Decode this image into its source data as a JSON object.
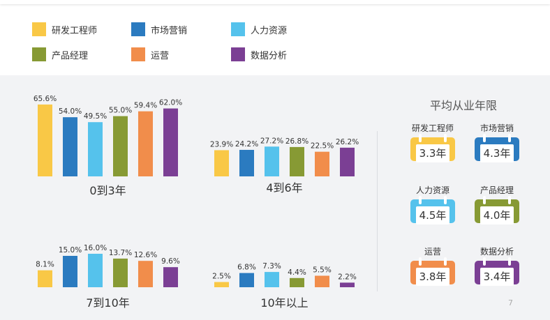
{
  "legend": [
    {
      "label": "研发工程师",
      "color": "#f9c846"
    },
    {
      "label": "市场营销",
      "color": "#2b7bc0"
    },
    {
      "label": "人力资源",
      "color": "#55c2ec"
    },
    {
      "label": "产品经理",
      "color": "#879a34"
    },
    {
      "label": "运营",
      "color": "#f18d4b"
    },
    {
      "label": "数据分析",
      "color": "#7b3f94"
    }
  ],
  "chart_data": [
    {
      "type": "bar",
      "title": "0到3年",
      "categories": [
        "研发工程师",
        "市场营销",
        "人力资源",
        "产品经理",
        "运营",
        "数据分析"
      ],
      "values": [
        65.6,
        54.0,
        49.5,
        55.0,
        59.4,
        62.0
      ],
      "labels": [
        "65.6%",
        "54.0%",
        "49.5%",
        "55.0%",
        "59.4%",
        "62.0%"
      ],
      "ylim": [
        0,
        70
      ]
    },
    {
      "type": "bar",
      "title": "4到6年",
      "categories": [
        "研发工程师",
        "市场营销",
        "人力资源",
        "产品经理",
        "运营",
        "数据分析"
      ],
      "values": [
        23.9,
        24.2,
        27.2,
        26.8,
        22.5,
        26.2
      ],
      "labels": [
        "23.9%",
        "24.2%",
        "27.2%",
        "26.8%",
        "22.5%",
        "26.2%"
      ],
      "ylim": [
        0,
        70
      ]
    },
    {
      "type": "bar",
      "title": "7到10年",
      "categories": [
        "研发工程师",
        "市场营销",
        "人力资源",
        "产品经理",
        "运营",
        "数据分析"
      ],
      "values": [
        8.1,
        15.0,
        16.0,
        13.7,
        12.6,
        9.6
      ],
      "labels": [
        "8.1%",
        "15.0%",
        "16.0%",
        "13.7%",
        "12.6%",
        "9.6%"
      ],
      "ylim": [
        0,
        20
      ]
    },
    {
      "type": "bar",
      "title": "10年以上",
      "categories": [
        "研发工程师",
        "市场营销",
        "人力资源",
        "产品经理",
        "运营",
        "数据分析"
      ],
      "values": [
        2.5,
        6.8,
        7.3,
        4.4,
        5.5,
        2.2
      ],
      "labels": [
        "2.5%",
        "6.8%",
        "7.3%",
        "4.4%",
        "5.5%",
        "2.2%"
      ],
      "ylim": [
        0,
        20
      ]
    }
  ],
  "average_years": {
    "title": "平均从业年限",
    "items": [
      {
        "name": "研发工程师",
        "value": "3.3年",
        "color": "#f9c846"
      },
      {
        "name": "市场营销",
        "value": "4.3年",
        "color": "#2b7bc0"
      },
      {
        "name": "人力资源",
        "value": "4.5年",
        "color": "#55c2ec"
      },
      {
        "name": "产品经理",
        "value": "4.0年",
        "color": "#879a34"
      },
      {
        "name": "运营",
        "value": "3.8年",
        "color": "#f18d4b"
      },
      {
        "name": "数据分析",
        "value": "3.4年",
        "color": "#7b3f94"
      }
    ]
  },
  "page_number": "7"
}
